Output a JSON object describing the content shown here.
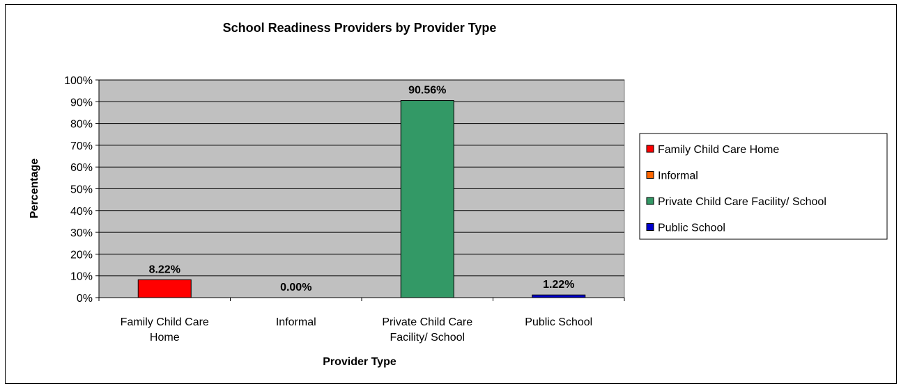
{
  "chart_data": {
    "type": "bar",
    "title": "School Readiness Providers by Provider Type",
    "xlabel": "Provider Type",
    "ylabel": "Percentage",
    "categories": [
      [
        "Family Child Care",
        "Home"
      ],
      [
        "Informal"
      ],
      [
        "Private Child Care",
        "Facility/ School"
      ],
      [
        "Public School"
      ]
    ],
    "values": [
      8.22,
      0.0,
      90.56,
      1.22
    ],
    "data_labels": [
      "8.22%",
      "0.00%",
      "90.56%",
      "1.22%"
    ],
    "colors": [
      "#ff0000",
      "#ff6600",
      "#339966",
      "#0000cc"
    ],
    "ylim": [
      0,
      100
    ],
    "yticks": [
      0,
      10,
      20,
      30,
      40,
      50,
      60,
      70,
      80,
      90,
      100
    ],
    "ytick_labels": [
      "0%",
      "10%",
      "20%",
      "30%",
      "40%",
      "50%",
      "60%",
      "70%",
      "80%",
      "90%",
      "100%"
    ],
    "grid": true,
    "plot_background": "#c0c0c0",
    "legend_position": "right",
    "legend": [
      "Family Child Care Home",
      "Informal",
      "Private Child Care Facility/ School",
      "Public School"
    ]
  }
}
